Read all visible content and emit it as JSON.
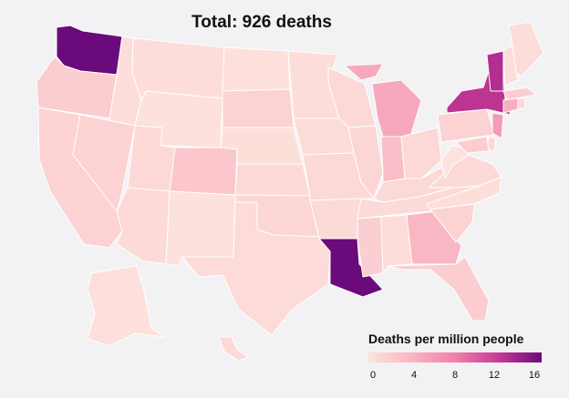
{
  "title": "Total: 926 deaths",
  "legend": {
    "title": "Deaths per million people",
    "ticks": [
      "0",
      "4",
      "8",
      "12",
      "16"
    ],
    "colors": [
      "#fde3dd",
      "#f9b6c3",
      "#ef7fac",
      "#c93a97",
      "#6b0a7a"
    ]
  },
  "colors": {
    "background": "#f2f1f3",
    "state_border": "#ffffff",
    "lowest": "#fde8e3",
    "highest": "#6b0a7a"
  },
  "states": {
    "WA": {
      "shade": 16
    },
    "OR": {
      "shade": 2
    },
    "CA": {
      "shade": 1.5
    },
    "ID": {
      "shade": 0.5
    },
    "NV": {
      "shade": 1.5
    },
    "UT": {
      "shade": 1
    },
    "AZ": {
      "shade": 0.8
    },
    "MT": {
      "shade": 0.5
    },
    "WY": {
      "shade": 0.2
    },
    "CO": {
      "shade": 2.5
    },
    "NM": {
      "shade": 0.2
    },
    "ND": {
      "shade": 0.3
    },
    "SD": {
      "shade": 1.5
    },
    "NE": {
      "shade": 0.4
    },
    "KS": {
      "shade": 0.8
    },
    "OK": {
      "shade": 1.2
    },
    "TX": {
      "shade": 0.7
    },
    "MN": {
      "shade": 0.5
    },
    "IA": {
      "shade": 0.6
    },
    "MO": {
      "shade": 1
    },
    "AR": {
      "shade": 0.8
    },
    "LA": {
      "shade": 16
    },
    "WI": {
      "shade": 1
    },
    "IL": {
      "shade": 1.2
    },
    "MI": {
      "shade": 5
    },
    "IN": {
      "shade": 3.5
    },
    "OH": {
      "shade": 1
    },
    "KY": {
      "shade": 1
    },
    "TN": {
      "shade": 0.8
    },
    "MS": {
      "shade": 1.8
    },
    "AL": {
      "shade": 0.6
    },
    "GA": {
      "shade": 4
    },
    "FL": {
      "shade": 2
    },
    "SC": {
      "shade": 1.5
    },
    "NC": {
      "shade": 0.4
    },
    "VA": {
      "shade": 0.8
    },
    "WV": {
      "shade": 0
    },
    "PA": {
      "shade": 1.5
    },
    "NY": {
      "shade": 12.5
    },
    "VT": {
      "shade": 13
    },
    "NH": {
      "shade": 0.5
    },
    "ME": {
      "shade": 0.5
    },
    "MA": {
      "shade": 2
    },
    "CT": {
      "shade": 4.5
    },
    "RI": {
      "shade": 1
    },
    "NJ": {
      "shade": 6
    },
    "DE": {
      "shade": 1
    },
    "MD": {
      "shade": 2
    },
    "AK": {
      "shade": 0.3
    },
    "HI": {
      "shade": 1
    }
  }
}
